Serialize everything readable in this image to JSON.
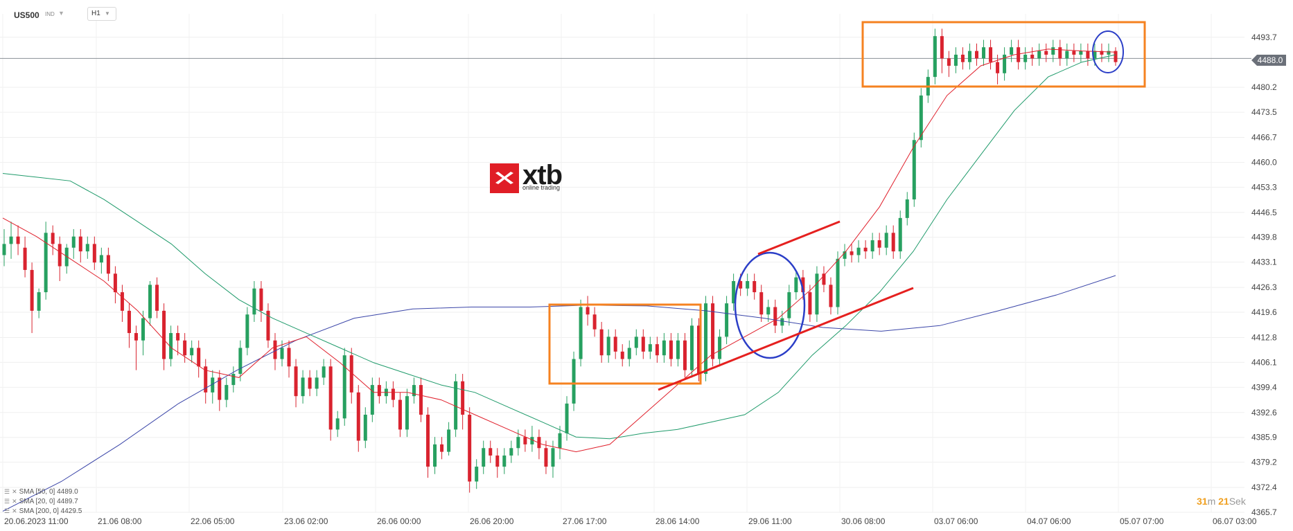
{
  "header": {
    "symbol": "US500",
    "symbol_tag": "IND",
    "timeframe": "H1"
  },
  "logo": {
    "brand": "xtb",
    "tagline": "online trading"
  },
  "current_price_label": "4488.0",
  "timer": {
    "minutes": "31",
    "m_label": "m",
    "seconds": "21",
    "s_label": "Sek"
  },
  "indicators": [
    {
      "label": "SMA [50, 0]",
      "value": "4489.0",
      "color": "#1e9a6a"
    },
    {
      "label": "SMA [20, 0]",
      "value": "4489.7",
      "color": "#e0202c"
    },
    {
      "label": "SMA [200, 0]",
      "value": "4429.5",
      "color": "#3a45a8"
    }
  ],
  "colors": {
    "up": "#27a060",
    "down": "#d9232f",
    "sma20": "#e0202c",
    "sma50": "#1e9a6a",
    "sma200": "#3a45a8",
    "box": "#f58220",
    "ellipse": "#2b3ec7",
    "trendline": "#e5201f"
  },
  "chart_data": {
    "type": "candlestick",
    "ylim": [
      4365.7,
      4500.0
    ],
    "y_ticks": [
      4493.7,
      4480.2,
      4473.5,
      4466.7,
      4460.0,
      4453.3,
      4446.5,
      4439.8,
      4433.1,
      4426.3,
      4419.6,
      4412.8,
      4406.1,
      4399.4,
      4392.6,
      4385.9,
      4379.2,
      4372.4,
      4365.7
    ],
    "current_price": 4488.0,
    "x_labels": [
      "20.06.2023  11:00",
      "21.06  08:00",
      "22.06  05:00",
      "23.06  02:00",
      "26.06  00:00",
      "26.06  20:00",
      "27.06  17:00",
      "28.06  14:00",
      "29.06  11:00",
      "30.06  08:00",
      "03.07  06:00",
      "04.07  06:00",
      "05.07  07:00",
      "06.07  03:00"
    ],
    "series": [
      {
        "name": "SMA [50, 0]",
        "values": [
          4457,
          4456,
          4455,
          4450,
          4444,
          4438,
          4430,
          4423,
          4418,
          4414,
          4410,
          4406,
          4403,
          4400,
          4398,
          4394,
          4390,
          4386,
          4385.5,
          4387,
          4388,
          4390,
          4392,
          4398,
          4408,
          4416,
          4425,
          4436,
          4450,
          4462,
          4474,
          4483,
          4487,
          4489
        ]
      },
      {
        "name": "SMA [20, 0]",
        "values": [
          4445,
          4440,
          4434,
          4428,
          4420,
          4410,
          4404,
          4402,
          4410,
          4413,
          4406,
          4398,
          4398,
          4396,
          4392,
          4388,
          4384,
          4382,
          4384,
          4392,
          4400,
          4408,
          4413,
          4418,
          4426,
          4436,
          4448,
          4464,
          4478,
          4486,
          4489,
          4490.5,
          4490,
          4489.7
        ]
      },
      {
        "name": "SMA [200, 0]",
        "values": [
          4366,
          4374,
          4384,
          4395,
          4404,
          4412,
          4418,
          4420.5,
          4421,
          4421,
          4421.5,
          4421.3,
          4420,
          4418,
          4415.5,
          4414.5,
          4416,
          4420,
          4424.3,
          4429.5
        ]
      }
    ],
    "candles": [
      [
        4435,
        4438,
        4442,
        4432
      ],
      [
        4438,
        4440,
        4444,
        4434
      ],
      [
        4440,
        4438,
        4443,
        4435
      ],
      [
        4437,
        4431,
        4440,
        4429
      ],
      [
        4431,
        4420,
        4433,
        4414
      ],
      [
        4420,
        4425,
        4426,
        4418
      ],
      [
        4425,
        4441,
        4444,
        4423
      ],
      [
        4441,
        4438,
        4443,
        4435
      ],
      [
        4438,
        4432,
        4440,
        4428
      ],
      [
        4432,
        4437,
        4438,
        4430
      ],
      [
        4437,
        4440,
        4442,
        4434
      ],
      [
        4440,
        4436,
        4442,
        4433
      ],
      [
        4436,
        4438,
        4440,
        4434
      ],
      [
        4438,
        4433,
        4440,
        4431
      ],
      [
        4433,
        4435,
        4437,
        4430
      ],
      [
        4435,
        4430,
        4437,
        4428
      ],
      [
        4430,
        4425,
        4432,
        4422
      ],
      [
        4425,
        4420,
        4427,
        4417
      ],
      [
        4420,
        4414,
        4422,
        4410
      ],
      [
        4414,
        4412,
        4416,
        4404
      ],
      [
        4412,
        4418,
        4420,
        4408
      ],
      [
        4418,
        4427,
        4428,
        4416
      ],
      [
        4427,
        4420,
        4429,
        4418
      ],
      [
        4420,
        4407,
        4422,
        4404
      ],
      [
        4407,
        4414,
        4416,
        4405
      ],
      [
        4414,
        4412,
        4416,
        4408
      ],
      [
        4412,
        4408,
        4414,
        4406
      ],
      [
        4408,
        4410,
        4412,
        4406
      ],
      [
        4410,
        4405,
        4412,
        4402
      ],
      [
        4405,
        4398,
        4407,
        4395
      ],
      [
        4398,
        4402,
        4404,
        4395
      ],
      [
        4402,
        4396,
        4404,
        4393
      ],
      [
        4396,
        4400,
        4402,
        4394
      ],
      [
        4400,
        4403,
        4405,
        4398
      ],
      [
        4403,
        4410,
        4412,
        4401
      ],
      [
        4410,
        4419,
        4421,
        4408
      ],
      [
        4419,
        4426,
        4428,
        4417
      ],
      [
        4426,
        4420,
        4428,
        4417
      ],
      [
        4420,
        4412,
        4422,
        4410
      ],
      [
        4412,
        4407,
        4414,
        4404
      ],
      [
        4407,
        4410,
        4412,
        4405
      ],
      [
        4410,
        4405,
        4412,
        4402
      ],
      [
        4405,
        4397,
        4407,
        4394
      ],
      [
        4397,
        4402,
        4404,
        4395
      ],
      [
        4402,
        4399,
        4404,
        4397
      ],
      [
        4399,
        4402,
        4404,
        4397
      ],
      [
        4402,
        4405,
        4407,
        4400
      ],
      [
        4405,
        4388,
        4407,
        4385
      ],
      [
        4388,
        4391,
        4393,
        4386
      ],
      [
        4391,
        4408,
        4410,
        4389
      ],
      [
        4408,
        4398,
        4410,
        4395
      ],
      [
        4398,
        4385,
        4400,
        4382
      ],
      [
        4385,
        4392,
        4394,
        4383
      ],
      [
        4392,
        4400,
        4402,
        4390
      ],
      [
        4400,
        4397,
        4402,
        4395
      ],
      [
        4397,
        4399,
        4401,
        4395
      ],
      [
        4399,
        4396,
        4401,
        4394
      ],
      [
        4396,
        4388,
        4398,
        4386
      ],
      [
        4388,
        4397,
        4399,
        4386
      ],
      [
        4397,
        4400,
        4402,
        4395
      ],
      [
        4400,
        4392,
        4402,
        4390
      ],
      [
        4392,
        4378,
        4394,
        4375
      ],
      [
        4378,
        4384,
        4386,
        4376
      ],
      [
        4384,
        4382,
        4386,
        4380
      ],
      [
        4382,
        4388,
        4390,
        4381
      ],
      [
        4388,
        4401,
        4403,
        4386
      ],
      [
        4401,
        4392,
        4403,
        4388
      ],
      [
        4392,
        4374,
        4394,
        4371
      ],
      [
        4374,
        4378,
        4380,
        4372
      ],
      [
        4378,
        4383,
        4385,
        4376
      ],
      [
        4383,
        4381,
        4385,
        4379
      ],
      [
        4381,
        4378,
        4383,
        4375
      ],
      [
        4378,
        4381,
        4383,
        4376
      ],
      [
        4381,
        4383,
        4385,
        4379
      ],
      [
        4383,
        4386,
        4388,
        4381
      ],
      [
        4386,
        4384,
        4388,
        4382
      ],
      [
        4384,
        4386,
        4389,
        4382
      ],
      [
        4386,
        4383,
        4388,
        4380
      ],
      [
        4383,
        4378,
        4385,
        4376
      ],
      [
        4378,
        4383,
        4385,
        4375
      ],
      [
        4383,
        4387,
        4389,
        4380
      ],
      [
        4387,
        4395,
        4397,
        4385
      ],
      [
        4395,
        4407,
        4409,
        4393
      ],
      [
        4407,
        4421,
        4423,
        4405
      ],
      [
        4421,
        4419,
        4424,
        4416
      ],
      [
        4419,
        4415,
        4421,
        4413
      ],
      [
        4415,
        4408,
        4417,
        4406
      ],
      [
        4408,
        4413,
        4415,
        4406
      ],
      [
        4413,
        4409,
        4415,
        4407
      ],
      [
        4409,
        4407,
        4411,
        4405
      ],
      [
        4407,
        4410,
        4412,
        4405
      ],
      [
        4410,
        4413,
        4415,
        4408
      ],
      [
        4413,
        4409,
        4415,
        4407
      ],
      [
        4409,
        4411,
        4413,
        4407
      ],
      [
        4411,
        4408,
        4413,
        4406
      ],
      [
        4408,
        4412,
        4414,
        4406
      ],
      [
        4412,
        4407,
        4414,
        4405
      ],
      [
        4407,
        4412,
        4414,
        4405
      ],
      [
        4412,
        4404,
        4414,
        4402
      ],
      [
        4404,
        4416,
        4418,
        4402
      ],
      [
        4416,
        4403,
        4418,
        4401
      ],
      [
        4403,
        4422,
        4424,
        4401
      ],
      [
        4422,
        4407,
        4424,
        4405
      ],
      [
        4407,
        4413,
        4415,
        4405
      ],
      [
        4413,
        4422,
        4424,
        4411
      ],
      [
        4422,
        4428,
        4430,
        4420
      ],
      [
        4428,
        4426,
        4430,
        4424
      ],
      [
        4426,
        4428,
        4430,
        4424
      ],
      [
        4428,
        4425,
        4430,
        4423
      ],
      [
        4425,
        4419,
        4427,
        4417
      ],
      [
        4419,
        4421,
        4423,
        4417
      ],
      [
        4421,
        4416,
        4423,
        4414
      ],
      [
        4416,
        4418,
        4420,
        4414
      ],
      [
        4418,
        4425,
        4427,
        4416
      ],
      [
        4425,
        4429,
        4431,
        4423
      ],
      [
        4429,
        4425,
        4431,
        4423
      ],
      [
        4425,
        4419,
        4427,
        4417
      ],
      [
        4419,
        4430,
        4432,
        4417
      ],
      [
        4430,
        4427,
        4432,
        4425
      ],
      [
        4427,
        4421,
        4429,
        4419
      ],
      [
        4421,
        4434,
        4436,
        4419
      ],
      [
        4434,
        4436,
        4438,
        4432
      ],
      [
        4436,
        4435,
        4438,
        4433
      ],
      [
        4435,
        4437,
        4439,
        4433
      ],
      [
        4437,
        4436,
        4439,
        4434
      ],
      [
        4436,
        4439,
        4441,
        4434
      ],
      [
        4439,
        4437,
        4441,
        4435
      ],
      [
        4437,
        4441,
        4443,
        4435
      ],
      [
        4441,
        4436,
        4443,
        4434
      ],
      [
        4436,
        4445,
        4447,
        4434
      ],
      [
        4445,
        4450,
        4452,
        4443
      ],
      [
        4450,
        4466,
        4468,
        4448
      ],
      [
        4466,
        4478,
        4480,
        4464
      ],
      [
        4478,
        4483,
        4485,
        4476
      ],
      [
        4483,
        4494,
        4496,
        4481
      ],
      [
        4494,
        4488,
        4496,
        4484
      ],
      [
        4488,
        4486,
        4490,
        4483
      ],
      [
        4486,
        4489,
        4491,
        4484
      ],
      [
        4489,
        4487,
        4491,
        4485
      ],
      [
        4487,
        4490,
        4492,
        4485
      ],
      [
        4490,
        4488,
        4492,
        4486
      ],
      [
        4488,
        4491,
        4493,
        4486
      ],
      [
        4491,
        4487,
        4493,
        4485
      ],
      [
        4487,
        4484,
        4489,
        4481
      ],
      [
        4484,
        4489,
        4491,
        4482
      ],
      [
        4489,
        4491,
        4493,
        4487
      ],
      [
        4491,
        4487,
        4493,
        4485
      ],
      [
        4487,
        4489,
        4491,
        4485
      ],
      [
        4489,
        4488,
        4491,
        4486
      ],
      [
        4488,
        4490,
        4492,
        4486
      ],
      [
        4490,
        4489,
        4492,
        4487
      ],
      [
        4489,
        4491,
        4493,
        4487
      ],
      [
        4491,
        4488,
        4493,
        4486
      ],
      [
        4488,
        4490,
        4492,
        4486
      ],
      [
        4490,
        4489,
        4492,
        4487
      ],
      [
        4489,
        4490,
        4492,
        4487
      ],
      [
        4490,
        4488,
        4492,
        4486
      ],
      [
        4488,
        4490,
        4492,
        4486
      ],
      [
        4490,
        4489,
        4492,
        4487
      ],
      [
        4489,
        4490,
        4492,
        4487
      ],
      [
        4490,
        4487,
        4491,
        4486
      ]
    ]
  }
}
